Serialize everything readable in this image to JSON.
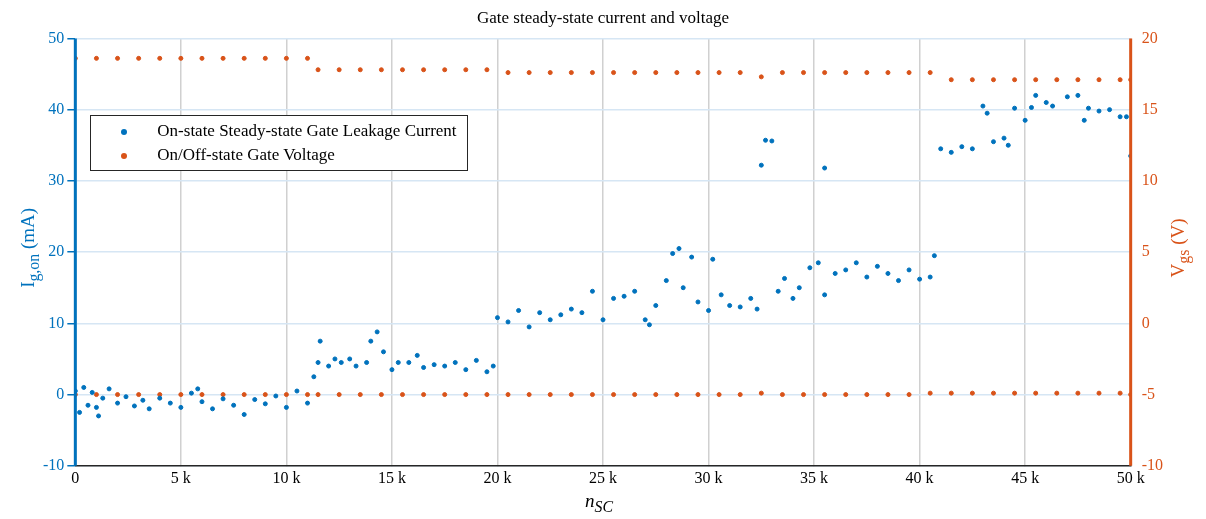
{
  "chart_data": {
    "type": "scatter",
    "title": "Gate steady-state current and voltage",
    "xlabel": "n$_{SC}$",
    "ylabel": "I$_{g,on}$ (mA)",
    "y2label": "V$_{gs}$ (V)",
    "xlim": [
      0,
      50000
    ],
    "xticks": [
      {
        "value": 0,
        "label": "0"
      },
      {
        "value": 5000,
        "label": "5 k"
      },
      {
        "value": 10000,
        "label": "10 k"
      },
      {
        "value": 15000,
        "label": "15 k"
      },
      {
        "value": 20000,
        "label": "20 k"
      },
      {
        "value": 25000,
        "label": "25 k"
      },
      {
        "value": 30000,
        "label": "30 k"
      },
      {
        "value": 35000,
        "label": "35 k"
      },
      {
        "value": 40000,
        "label": "40 k"
      },
      {
        "value": 45000,
        "label": "45 k"
      },
      {
        "value": 50000,
        "label": "50 k"
      }
    ],
    "ylim": [
      -10,
      50
    ],
    "yticks": [
      -10,
      0,
      10,
      20,
      30,
      40,
      50
    ],
    "y2lim": [
      -10,
      20
    ],
    "y2ticks": [
      -10,
      -5,
      0,
      5,
      10,
      15,
      20
    ],
    "grid": true,
    "legend": "top left",
    "marker": "circle",
    "series": [
      {
        "name": "On-state Steady-state Gate Leakage Current",
        "color": "#0072bd",
        "axis": "y",
        "x": [
          0,
          200,
          400,
          600,
          800,
          1000,
          1100,
          1300,
          1600,
          2000,
          2400,
          2800,
          3200,
          3500,
          4000,
          4500,
          5000,
          5500,
          5800,
          6000,
          6500,
          7000,
          7500,
          8000,
          8500,
          9000,
          9500,
          10000,
          10500,
          11000,
          11300,
          11500,
          11600,
          12000,
          12300,
          12600,
          13000,
          13300,
          13800,
          14000,
          14300,
          14600,
          15000,
          15300,
          15800,
          16200,
          16500,
          17000,
          17500,
          18000,
          18500,
          19000,
          19500,
          19800,
          20000,
          20500,
          21000,
          21500,
          22000,
          22500,
          23000,
          23500,
          24000,
          24500,
          25000,
          25500,
          26000,
          26500,
          27000,
          27200,
          27500,
          28000,
          28300,
          28600,
          28800,
          29200,
          29500,
          30000,
          30200,
          30600,
          31000,
          31500,
          32000,
          32300,
          32500,
          32700,
          33000,
          33300,
          33600,
          34000,
          34300,
          34800,
          35200,
          35500,
          35500,
          36000,
          36500,
          37000,
          37500,
          38000,
          38500,
          39000,
          39500,
          40000,
          40500,
          40700,
          41000,
          41500,
          42000,
          42500,
          43000,
          43200,
          43500,
          44000,
          44200,
          44500,
          45000,
          45300,
          45500,
          46000,
          46300,
          47000,
          47500,
          47800,
          48000,
          48500,
          49000,
          49500,
          49800,
          50000
        ],
        "values": [
          0.5,
          -2.5,
          1,
          -1.5,
          0.3,
          -1.8,
          -3,
          -0.5,
          0.8,
          -1.2,
          -0.3,
          -1.6,
          -0.8,
          -2,
          -0.5,
          -1.2,
          -1.8,
          0.2,
          0.8,
          -1,
          -2,
          -0.6,
          -1.5,
          -2.8,
          -0.7,
          -1.3,
          -0.2,
          -1.8,
          0.5,
          -1.2,
          2.5,
          4.5,
          7.5,
          4,
          5,
          4.5,
          5,
          4,
          4.5,
          7.5,
          8.8,
          6,
          3.5,
          4.5,
          4.5,
          5.5,
          3.8,
          4.2,
          4,
          4.5,
          3.5,
          4.8,
          3.2,
          4,
          10.8,
          10.2,
          11.8,
          9.5,
          11.5,
          10.5,
          11.2,
          12,
          11.5,
          14.5,
          10.5,
          13.5,
          13.8,
          14.5,
          10.5,
          9.8,
          12.5,
          16,
          19.8,
          20.5,
          15,
          19.3,
          13,
          11.8,
          19,
          14,
          12.5,
          12.3,
          13.5,
          12,
          32.2,
          35.7,
          35.6,
          14.5,
          16.3,
          13.5,
          15,
          17.8,
          18.5,
          31.8,
          14,
          17,
          17.5,
          18.5,
          16.5,
          18,
          17,
          16,
          17.5,
          16.2,
          16.5,
          19.5,
          34.5,
          34,
          34.8,
          34.5,
          40.5,
          39.5,
          35.5,
          36,
          35,
          40.2,
          38.5,
          40.3,
          42,
          41,
          40.5,
          41.8,
          42,
          38.5,
          40.2,
          39.8,
          40,
          39,
          39,
          33.5
        ]
      },
      {
        "name": "On/Off-state Gate Voltage",
        "color": "#d95319",
        "axis": "y2",
        "x": [
          0,
          1000,
          2000,
          3000,
          4000,
          5000,
          6000,
          7000,
          8000,
          9000,
          10000,
          11000,
          11500,
          12500,
          13500,
          14500,
          15500,
          16500,
          17500,
          18500,
          19500,
          20500,
          21500,
          22500,
          23500,
          24500,
          25500,
          26500,
          27500,
          28500,
          29500,
          30500,
          31500,
          32500,
          33500,
          34500,
          35500,
          36500,
          37500,
          38500,
          39500,
          40500,
          41500,
          42500,
          43500,
          44500,
          45500,
          46500,
          47500,
          48500,
          49500,
          50000,
          0,
          1000,
          2000,
          3000,
          4000,
          5000,
          6000,
          7000,
          8000,
          9000,
          10000,
          11000,
          11500,
          12500,
          13500,
          14500,
          15500,
          16500,
          17500,
          18500,
          19500,
          20500,
          21500,
          22500,
          23500,
          24500,
          25500,
          26500,
          27500,
          28500,
          29500,
          30500,
          31500,
          32500,
          33500,
          34500,
          35500,
          36500,
          37500,
          38500,
          39500,
          40500,
          41500,
          42500,
          43500,
          44500,
          45500,
          46500,
          47500,
          48500,
          49500,
          50000
        ],
        "values": [
          18.6,
          18.6,
          18.6,
          18.6,
          18.6,
          18.6,
          18.6,
          18.6,
          18.6,
          18.6,
          18.6,
          18.6,
          17.8,
          17.8,
          17.8,
          17.8,
          17.8,
          17.8,
          17.8,
          17.8,
          17.8,
          17.6,
          17.6,
          17.6,
          17.6,
          17.6,
          17.6,
          17.6,
          17.6,
          17.6,
          17.6,
          17.6,
          17.6,
          17.3,
          17.6,
          17.6,
          17.6,
          17.6,
          17.6,
          17.6,
          17.6,
          17.6,
          17.1,
          17.1,
          17.1,
          17.1,
          17.1,
          17.1,
          17.1,
          17.1,
          17.1,
          17.1,
          -5,
          -5,
          -5,
          -5,
          -5,
          -5,
          -5,
          -5,
          -5,
          -5,
          -5,
          -5,
          -5,
          -5,
          -5,
          -5,
          -5,
          -5,
          -5,
          -5,
          -5,
          -5,
          -5,
          -5,
          -5,
          -5,
          -5,
          -5,
          -5,
          -5,
          -5,
          -5,
          -5,
          -4.9,
          -5,
          -5,
          -5,
          -5,
          -5,
          -5,
          -5,
          -4.9,
          -4.9,
          -4.9,
          -4.9,
          -4.9,
          -4.9,
          -4.9,
          -4.9,
          -4.9,
          -4.9,
          -5
        ]
      }
    ]
  }
}
